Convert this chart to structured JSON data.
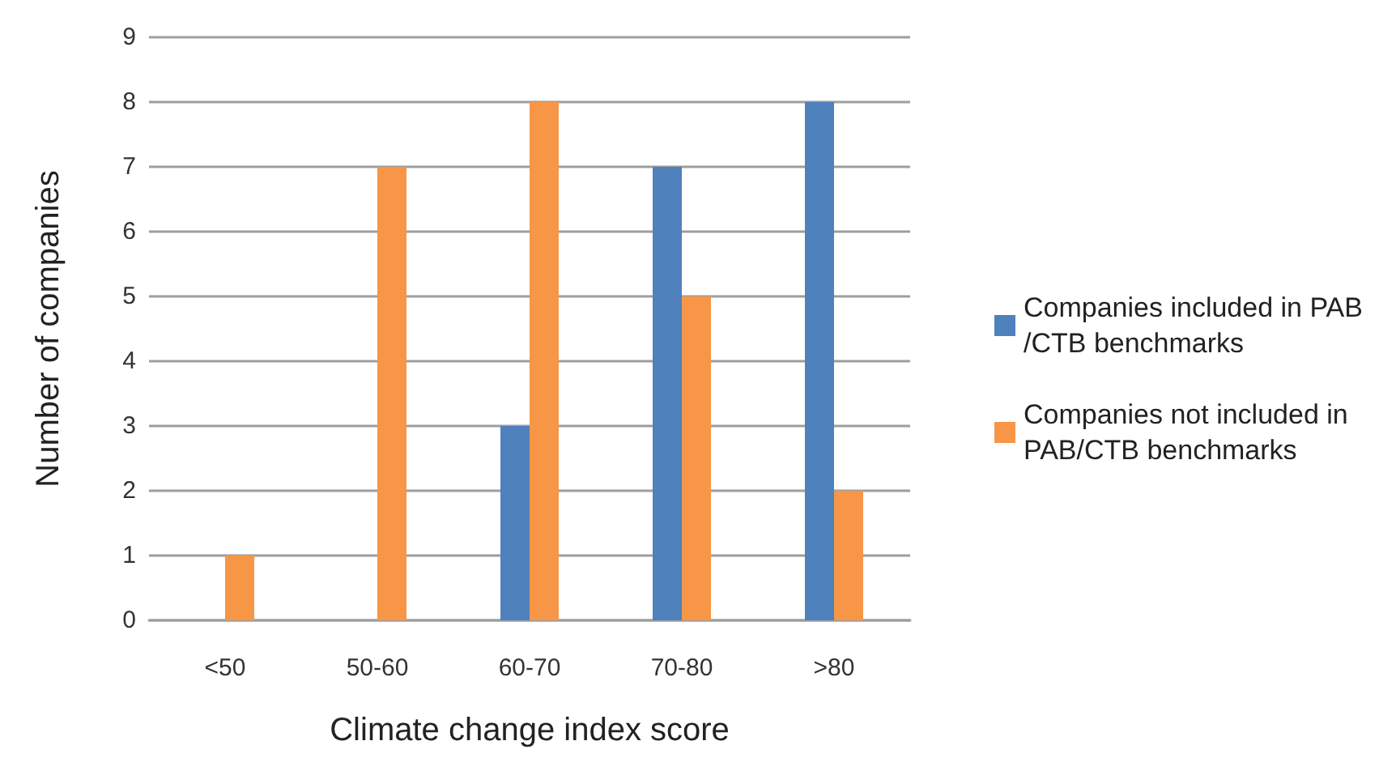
{
  "chart_data": {
    "type": "bar",
    "xlabel": "Climate change index score",
    "ylabel": "Number of companies",
    "categories": [
      "<50",
      "50-60",
      "60-70",
      "70-80",
      ">80"
    ],
    "series": [
      {
        "name": "Companies included in PAB/CTB benchmarks",
        "color": "#4f81bd",
        "values": [
          0,
          0,
          3,
          7,
          8
        ]
      },
      {
        "name": "Companies not included in PAB/CTB benchmarks",
        "color": "#f79646",
        "values": [
          1,
          7,
          8,
          5,
          2
        ]
      }
    ],
    "ylim": [
      0,
      9
    ],
    "yticks": [
      0,
      1,
      2,
      3,
      4,
      5,
      6,
      7,
      8,
      9
    ],
    "grid": "y",
    "legend": "right"
  }
}
